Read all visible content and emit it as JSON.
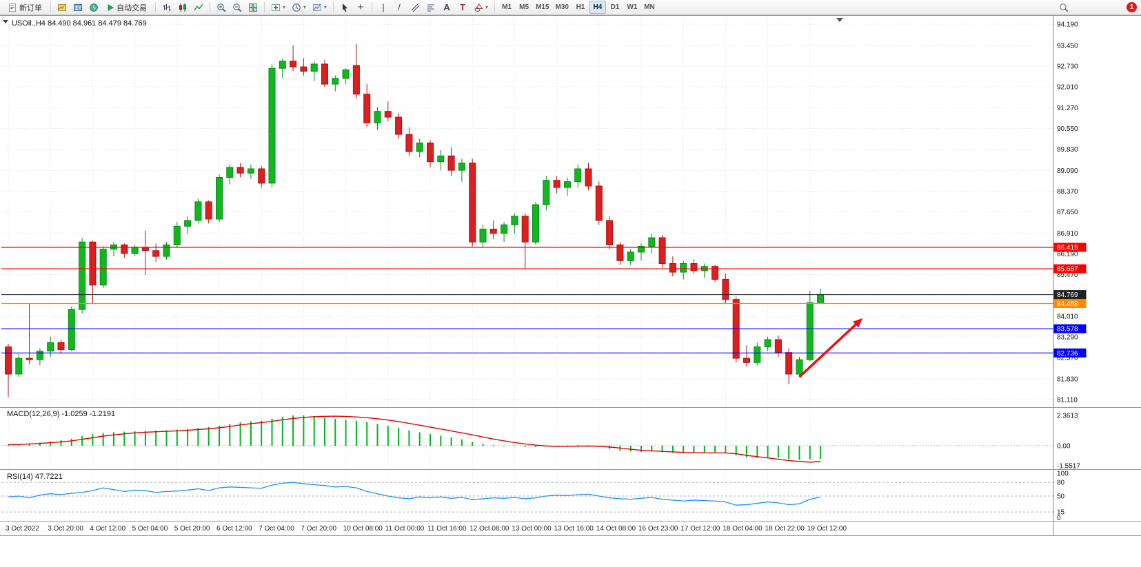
{
  "toolbar": {
    "new_order_label": "新订单",
    "auto_trading_label": "自动交易",
    "timeframes": [
      "M1",
      "M5",
      "M15",
      "M30",
      "H1",
      "H4",
      "D1",
      "W1",
      "MN"
    ],
    "active_timeframe": "H4",
    "notification_count": "1",
    "icons": {
      "dropdown": "▾",
      "crosshair": "+",
      "vertical_line": "|",
      "trendline": "/",
      "text_tool": "A",
      "label_tool": "T"
    }
  },
  "chart_data": {
    "type": "candlestick",
    "symbol_period": "USOil.,H4",
    "ohlc_text": "84.490 84.961 84.479 84.769",
    "ohlc": {
      "open": 84.49,
      "high": 84.961,
      "low": 84.479,
      "close": 84.769
    },
    "bull_color": "#10b81e",
    "bear_color": "#dc2020",
    "bull_stroke": "#068a16",
    "bear_stroke": "#b01010",
    "candles": [
      [
        82.95,
        83.05,
        81.2,
        82.0
      ],
      [
        82.0,
        82.7,
        81.9,
        82.55
      ],
      [
        82.55,
        84.45,
        82.35,
        82.5
      ],
      [
        82.5,
        82.9,
        82.3,
        82.8
      ],
      [
        82.8,
        83.3,
        82.6,
        83.1
      ],
      [
        83.1,
        83.2,
        82.7,
        82.85
      ],
      [
        82.85,
        84.35,
        82.8,
        84.25
      ],
      [
        84.25,
        86.75,
        84.1,
        86.6
      ],
      [
        86.6,
        86.65,
        84.45,
        85.1
      ],
      [
        85.1,
        86.45,
        85.0,
        86.35
      ],
      [
        86.35,
        86.6,
        86.1,
        86.5
      ],
      [
        86.5,
        86.55,
        86.05,
        86.2
      ],
      [
        86.2,
        86.5,
        86.1,
        86.42
      ],
      [
        86.42,
        87.0,
        85.45,
        86.3
      ],
      [
        86.3,
        86.55,
        85.9,
        86.1
      ],
      [
        86.1,
        86.6,
        86.0,
        86.5
      ],
      [
        86.5,
        87.3,
        86.4,
        87.15
      ],
      [
        87.15,
        87.5,
        86.9,
        87.35
      ],
      [
        87.35,
        88.1,
        87.25,
        88.0
      ],
      [
        88.0,
        88.05,
        87.25,
        87.4
      ],
      [
        87.4,
        88.95,
        87.3,
        88.85
      ],
      [
        88.85,
        89.3,
        88.6,
        89.2
      ],
      [
        89.2,
        89.35,
        88.85,
        89.0
      ],
      [
        89.0,
        89.3,
        88.8,
        89.15
      ],
      [
        89.15,
        89.25,
        88.5,
        88.65
      ],
      [
        88.65,
        92.8,
        88.5,
        92.65
      ],
      [
        92.65,
        93.0,
        92.3,
        92.9
      ],
      [
        92.9,
        93.45,
        92.55,
        92.7
      ],
      [
        92.7,
        93.0,
        92.4,
        92.55
      ],
      [
        92.55,
        92.9,
        92.2,
        92.8
      ],
      [
        92.8,
        92.95,
        92.0,
        92.1
      ],
      [
        92.1,
        92.4,
        91.85,
        92.3
      ],
      [
        92.3,
        92.65,
        92.1,
        92.6
      ],
      [
        92.75,
        93.5,
        91.6,
        91.75
      ],
      [
        91.75,
        92.1,
        90.6,
        90.75
      ],
      [
        90.75,
        91.3,
        90.5,
        91.15
      ],
      [
        91.15,
        91.5,
        90.8,
        90.95
      ],
      [
        90.95,
        91.1,
        90.2,
        90.35
      ],
      [
        90.35,
        90.6,
        89.6,
        89.75
      ],
      [
        89.75,
        90.2,
        89.55,
        90.05
      ],
      [
        90.05,
        90.15,
        89.2,
        89.4
      ],
      [
        89.4,
        89.8,
        89.1,
        89.6
      ],
      [
        89.6,
        89.9,
        88.9,
        89.1
      ],
      [
        89.1,
        89.5,
        88.7,
        89.35
      ],
      [
        89.35,
        89.5,
        86.45,
        86.6
      ],
      [
        86.6,
        87.2,
        86.4,
        87.05
      ],
      [
        87.05,
        87.35,
        86.7,
        86.9
      ],
      [
        86.9,
        87.3,
        86.6,
        87.2
      ],
      [
        87.2,
        87.6,
        86.9,
        87.5
      ],
      [
        87.5,
        87.6,
        85.65,
        86.6
      ],
      [
        86.6,
        88.0,
        86.5,
        87.9
      ],
      [
        87.9,
        88.9,
        87.7,
        88.75
      ],
      [
        88.75,
        88.9,
        88.3,
        88.5
      ],
      [
        88.5,
        88.85,
        88.2,
        88.7
      ],
      [
        88.7,
        89.3,
        88.5,
        89.15
      ],
      [
        89.15,
        89.35,
        88.4,
        88.55
      ],
      [
        88.55,
        88.7,
        87.2,
        87.35
      ],
      [
        87.35,
        87.5,
        86.35,
        86.5
      ],
      [
        86.5,
        86.6,
        85.8,
        85.95
      ],
      [
        85.95,
        86.35,
        85.8,
        86.25
      ],
      [
        86.25,
        86.55,
        85.95,
        86.45
      ],
      [
        86.45,
        86.9,
        86.2,
        86.75
      ],
      [
        86.75,
        86.85,
        85.7,
        85.85
      ],
      [
        85.85,
        86.1,
        85.4,
        85.55
      ],
      [
        85.55,
        85.95,
        85.3,
        85.85
      ],
      [
        85.85,
        86.0,
        85.5,
        85.6
      ],
      [
        85.6,
        85.85,
        85.35,
        85.75
      ],
      [
        85.75,
        85.8,
        85.2,
        85.3
      ],
      [
        85.3,
        85.5,
        84.45,
        84.6
      ],
      [
        84.6,
        84.7,
        82.4,
        82.55
      ],
      [
        82.55,
        83.0,
        82.25,
        82.4
      ],
      [
        82.4,
        83.1,
        82.3,
        82.95
      ],
      [
        82.95,
        83.3,
        82.8,
        83.2
      ],
      [
        83.2,
        83.35,
        82.6,
        82.75
      ],
      [
        82.75,
        82.9,
        81.65,
        82.0
      ],
      [
        82.0,
        82.6,
        81.95,
        82.5
      ],
      [
        82.5,
        84.9,
        82.45,
        84.49
      ],
      [
        84.49,
        84.961,
        84.479,
        84.769
      ]
    ],
    "time_labels": [
      "3 Oct 2022",
      "3 Oct 20:00",
      "4 Oct 12:00",
      "5 Oct 04:00",
      "5 Oct 20:00",
      "6 Oct 12:00",
      "7 Oct 04:00",
      "7 Oct 20:00",
      "10 Oct 08:00",
      "11 Oct 00:00",
      "11 Oct 16:00",
      "12 Oct 08:00",
      "13 Oct 00:00",
      "13 Oct 16:00",
      "14 Oct 08:00",
      "16 Oct 23:00",
      "17 Oct 12:00",
      "18 Oct 04:00",
      "18 Oct 22:00",
      "19 Oct 12:00"
    ],
    "price_axis_labels": [
      {
        "text": "94.190",
        "value": 94.19
      },
      {
        "text": "93.450",
        "value": 93.45
      },
      {
        "text": "92.730",
        "value": 92.73
      },
      {
        "text": "92.010",
        "value": 92.01
      },
      {
        "text": "91.270",
        "value": 91.27
      },
      {
        "text": "90.550",
        "value": 90.55
      },
      {
        "text": "89.830",
        "value": 89.83
      },
      {
        "text": "89.090",
        "value": 89.09
      },
      {
        "text": "88.370",
        "value": 88.37
      },
      {
        "text": "87.650",
        "value": 87.65
      },
      {
        "text": "86.910",
        "value": 86.91
      },
      {
        "text": "86.190",
        "value": 86.19
      },
      {
        "text": "85.470",
        "value": 85.47
      },
      {
        "text": "84.750",
        "value": 84.75
      },
      {
        "text": "84.010",
        "value": 84.01
      },
      {
        "text": "83.290",
        "value": 83.29
      },
      {
        "text": "82.570",
        "value": 82.57
      },
      {
        "text": "81.830",
        "value": 81.83
      },
      {
        "text": "81.110",
        "value": 81.11
      }
    ],
    "levels": [
      {
        "value": 86.415,
        "label": "86.415",
        "color": "#ff0000"
      },
      {
        "value": 85.667,
        "label": "85.667",
        "color": "#ff0000"
      },
      {
        "value": 84.458,
        "label": "84.458",
        "color": "#ff8a00"
      },
      {
        "value": 83.578,
        "label": "83.578",
        "color": "#0000ff"
      },
      {
        "value": 82.736,
        "label": "82.736",
        "color": "#0000ff"
      }
    ],
    "current_price": {
      "value": 84.769,
      "label": "84.769",
      "color": "#222222"
    },
    "macd": {
      "title": "MACD(12,26,9)",
      "values_text": "-1.0259 -1.2191",
      "main_value": -1.0259,
      "signal_value": -1.2191,
      "histogram_color": "#00b61e",
      "signal_color": "#e00000",
      "histogram": [
        0.05,
        0.1,
        0.18,
        0.25,
        0.33,
        0.42,
        0.55,
        0.75,
        0.9,
        1.0,
        1.05,
        1.1,
        1.12,
        1.15,
        1.18,
        1.2,
        1.25,
        1.3,
        1.38,
        1.45,
        1.55,
        1.7,
        1.82,
        1.9,
        1.95,
        2.1,
        2.25,
        2.36,
        2.36,
        2.3,
        2.2,
        2.1,
        2.0,
        1.95,
        1.85,
        1.7,
        1.55,
        1.4,
        1.2,
        1.05,
        0.9,
        0.78,
        0.65,
        0.5,
        0.3,
        0.15,
        0.05,
        0.0,
        -0.05,
        -0.1,
        -0.1,
        -0.05,
        0.0,
        0.02,
        0.05,
        0.0,
        -0.1,
        -0.25,
        -0.38,
        -0.45,
        -0.48,
        -0.45,
        -0.5,
        -0.55,
        -0.58,
        -0.55,
        -0.52,
        -0.5,
        -0.55,
        -0.75,
        -0.9,
        -0.95,
        -0.92,
        -0.95,
        -1.05,
        -1.1,
        -1.05,
        -1.0259
      ],
      "signal": [
        0.08,
        0.1,
        0.14,
        0.18,
        0.24,
        0.3,
        0.38,
        0.5,
        0.62,
        0.75,
        0.85,
        0.93,
        1.0,
        1.05,
        1.09,
        1.12,
        1.16,
        1.2,
        1.26,
        1.32,
        1.4,
        1.5,
        1.62,
        1.72,
        1.8,
        1.9,
        2.02,
        2.12,
        2.2,
        2.26,
        2.29,
        2.3,
        2.28,
        2.24,
        2.18,
        2.1,
        2.0,
        1.88,
        1.74,
        1.6,
        1.45,
        1.3,
        1.15,
        1.0,
        0.85,
        0.68,
        0.52,
        0.38,
        0.25,
        0.14,
        0.05,
        -0.02,
        -0.05,
        -0.05,
        -0.03,
        -0.02,
        -0.04,
        -0.1,
        -0.18,
        -0.27,
        -0.35,
        -0.4,
        -0.44,
        -0.48,
        -0.52,
        -0.54,
        -0.55,
        -0.55,
        -0.56,
        -0.62,
        -0.75,
        -0.85,
        -0.95,
        -1.05,
        -1.15,
        -1.22,
        -1.28,
        -1.2191
      ],
      "axis_labels": [
        {
          "text": "2.3613",
          "value": 2.3613
        },
        {
          "text": "0.00",
          "value": 0
        },
        {
          "text": "-1.5517",
          "value": -1.5517
        }
      ]
    },
    "rsi": {
      "title": "RSI(14)",
      "value_text": "47.7221",
      "value": 47.7221,
      "line_color": "#1e90ff",
      "levels": [
        80,
        50,
        15
      ],
      "values": [
        48,
        50,
        46,
        52,
        55,
        53,
        56,
        58,
        62,
        68,
        64,
        60,
        63,
        62,
        58,
        60,
        61,
        63,
        66,
        62,
        68,
        70,
        69,
        68,
        67,
        74,
        78,
        80,
        77,
        75,
        73,
        70,
        71,
        68,
        60,
        55,
        50,
        46,
        44,
        48,
        46,
        48,
        45,
        47,
        42,
        44,
        46,
        45,
        47,
        44,
        46,
        50,
        52,
        51,
        53,
        54,
        50,
        46,
        44,
        43,
        45,
        47,
        43,
        41,
        39,
        41,
        40,
        39,
        37,
        30,
        31,
        34,
        37,
        35,
        31,
        33,
        43,
        47.7221
      ],
      "axis_labels": [
        {
          "text": "100",
          "value": 100
        },
        {
          "text": "80",
          "value": 80
        },
        {
          "text": "50",
          "value": 50
        },
        {
          "text": "15",
          "value": 15
        },
        {
          "text": "0",
          "value": 0
        }
      ]
    },
    "arrow": {
      "from_bar": 75,
      "from_price": 81.9,
      "to_bar": 81,
      "to_price": 83.95,
      "color": "#e81010"
    }
  }
}
